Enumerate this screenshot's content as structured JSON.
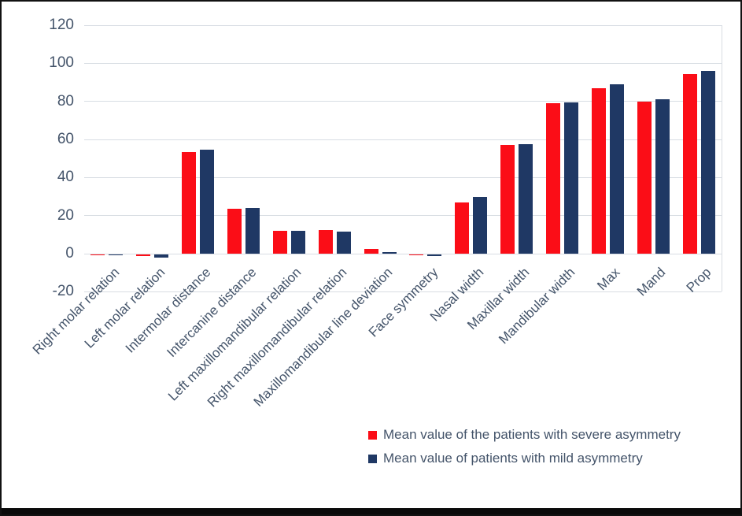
{
  "chart_data": {
    "type": "bar",
    "title": "",
    "xlabel": "",
    "ylabel": "",
    "categories": [
      "Right molar relation",
      "Left molar relation",
      "Intermolar distance",
      "Intercanine distance",
      "Left maxillomandibular relation",
      "Right maxillomandibular relation",
      "Maxillomandibular line deviation",
      "Face symmetry",
      "Nasal width",
      "Maxillar width",
      "Mandibular width",
      "Max",
      "Mand",
      "Prop"
    ],
    "series": [
      {
        "name": "Mean value of the patients with severe asymmetry",
        "color": "#fb0d17",
        "values": [
          -0.1,
          -1.0,
          53.5,
          23.5,
          12.0,
          12.3,
          2.5,
          -0.1,
          27.0,
          57.0,
          79.0,
          87.0,
          80.0,
          94.5
        ]
      },
      {
        "name": "Mean value of patients with mild asymmetry",
        "color": "#1f3864",
        "values": [
          -0.2,
          -1.5,
          54.5,
          24.0,
          12.0,
          11.7,
          0.7,
          -0.8,
          30.0,
          57.5,
          79.5,
          89.0,
          81.0,
          96.0
        ]
      }
    ],
    "y_axis": {
      "min": -20,
      "max": 120,
      "step": 20,
      "ticks": [
        120,
        100,
        80,
        60,
        40,
        20,
        0,
        -20
      ]
    },
    "grid": true,
    "legend_position": "bottom-right",
    "colors": {
      "grid": "#d8dde3",
      "axis_text": "#44546a",
      "background": "#ffffff",
      "frame_border": "#121212"
    }
  }
}
